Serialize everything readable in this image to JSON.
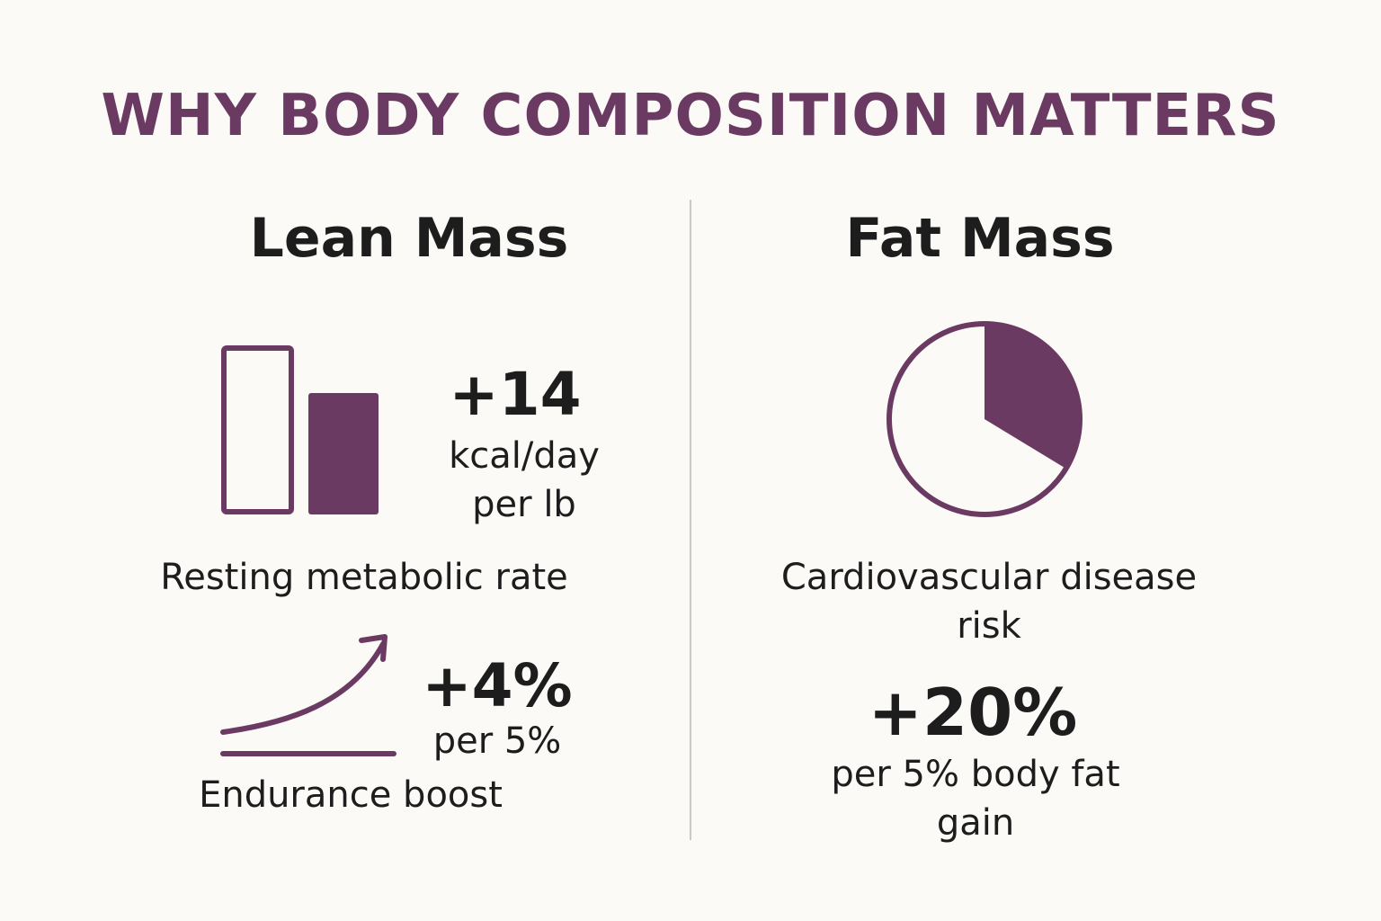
{
  "title": "WHY BODY COMPOSITION MATTERS",
  "accent_color": "#6b3a62",
  "lean": {
    "heading": "Lean Mass",
    "rmr_value": "+14",
    "rmr_unit_line1": "kcal/day",
    "rmr_unit_line2": "per lb",
    "rmr_label": "Resting metabolic rate",
    "endurance_value": "+4%",
    "endurance_unit": "per 5%",
    "endurance_label": "Endurance boost",
    "icons": [
      "bar-chart-icon",
      "trend-arrow-icon"
    ]
  },
  "fat": {
    "heading": "Fat Mass",
    "risk_label_line1": "Cardiovascular disease",
    "risk_label_line2": "risk",
    "risk_value": "+20%",
    "risk_unit_line1": "per 5% body fat",
    "risk_unit_line2": "gain",
    "icons": [
      "pie-chart-icon"
    ]
  }
}
